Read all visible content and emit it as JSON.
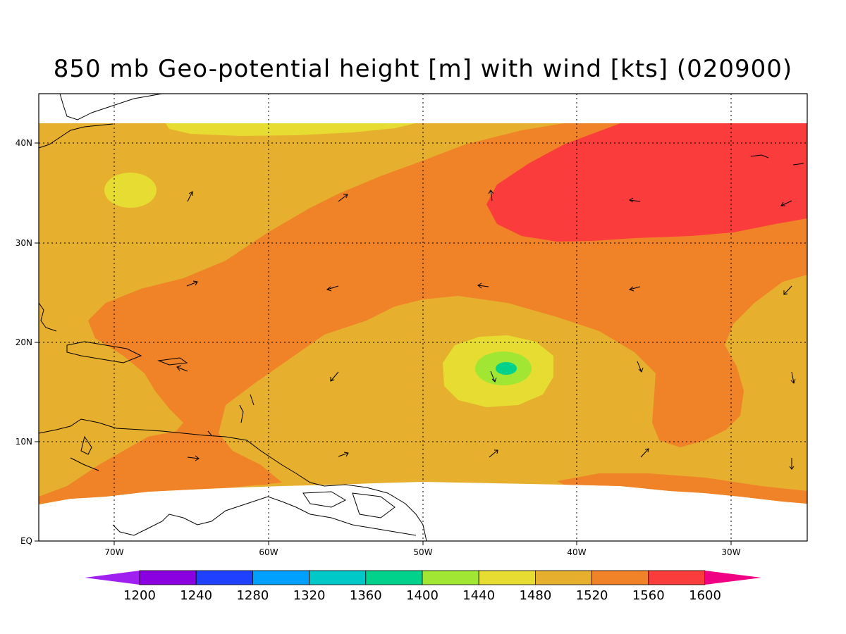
{
  "title": "850 mb Geo-potential height [m] with wind [kts] (020900)",
  "axes": {
    "lat_labels": [
      "40N",
      "30N",
      "20N",
      "10N",
      "EQ"
    ],
    "lon_labels": [
      "70W",
      "60W",
      "50W",
      "40W",
      "30W"
    ]
  },
  "colorbar": {
    "labels": [
      "1200",
      "1240",
      "1280",
      "1320",
      "1360",
      "1400",
      "1440",
      "1480",
      "1520",
      "1560",
      "1600"
    ],
    "colors": [
      "#a020f0",
      "#8a00e0",
      "#2040ff",
      "#00a0ff",
      "#00c8c8",
      "#00d28c",
      "#a0e632",
      "#e6dc32",
      "#e6af2d",
      "#f08228",
      "#fa3c3c",
      "#f00082"
    ]
  },
  "fill_colors": {
    "c1440": "#a0e632",
    "c1400": "#00d28c",
    "c1480": "#e6dc32",
    "c1520": "#e6af2d",
    "c1560": "#f08228",
    "c1600": "#fa3c3c"
  }
}
